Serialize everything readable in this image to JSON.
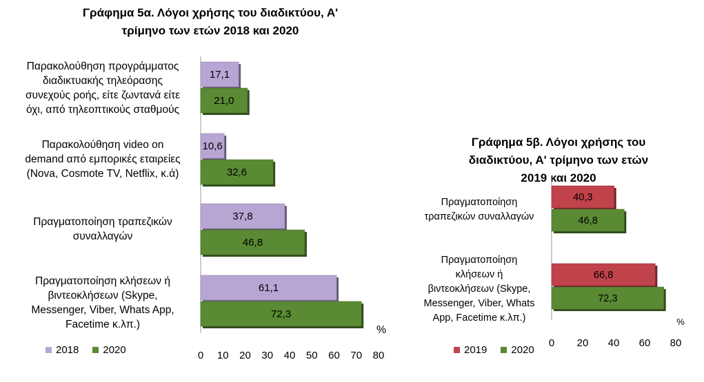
{
  "colors": {
    "2018": "#b7a6d4",
    "2019": "#c0424a",
    "2020": "#5a8a33"
  },
  "chart_data": [
    {
      "type": "bar",
      "orientation": "horizontal",
      "title": "Γράφημα 5α. Λόγοι χρήσης του διαδικτύου, Α' τρίμηνο των ετών 2018 και 2020",
      "unit_label": "%",
      "categories": [
        "Παρακολούθηση προγράμματος διαδικτυακής τηλεόρασης συνεχούς ροής, είτε ζωντανά είτε όχι, από τηλεοπτικούς σταθμούς",
        "Παρακολούθηση video on demand από εμπορικές εταιρείες (Nova, Cosmote TV, Netflix, κ.ά)",
        "Πραγματοποίηση τραπεζικών συναλλαγών",
        "Πραγματοποίηση κλήσεων ή βιντεοκλήσεων (Skype, Messenger, Viber, Whats App, Facetime κ.λπ.)"
      ],
      "category_lines": [
        [
          "Παρακολούθηση προγράμματος",
          "διαδικτυακής τηλεόρασης",
          "συνεχούς ροής, είτε ζωντανά είτε",
          "όχι, από τηλεοπτικούς σταθμούς"
        ],
        [
          "Παρακολούθηση video on",
          "demand από εμπορικές εταιρείες",
          "(Nova, Cosmote TV, Netflix, κ.ά)"
        ],
        [
          "Πραγματοποίηση τραπεζικών",
          "συναλλαγών"
        ],
        [
          "Πραγματοποίηση κλήσεων ή",
          "βιντεοκλήσεων (Skype,",
          "Messenger, Viber, Whats App,",
          "Facetime κ.λπ.)"
        ]
      ],
      "series": [
        {
          "name": "2018",
          "values": [
            17.1,
            10.6,
            37.8,
            61.1
          ],
          "labels": [
            "17,1",
            "10,6",
            "37,8",
            "61,1"
          ]
        },
        {
          "name": "2020",
          "values": [
            21.0,
            32.6,
            46.8,
            72.3
          ],
          "labels": [
            "21,0",
            "32,6",
            "46,8",
            "72,3"
          ]
        }
      ],
      "xlim": [
        0,
        80
      ],
      "xticks": [
        "0",
        "10",
        "20",
        "30",
        "40",
        "50",
        "60",
        "70",
        "80"
      ],
      "legend_position": "bottom-left"
    },
    {
      "type": "bar",
      "orientation": "horizontal",
      "title": "Γράφημα 5β. Λόγοι χρήσης του διαδικτύου, Α' τρίμηνο των ετών 2019 και 2020",
      "unit_label": "%",
      "categories": [
        "Πραγματοποίηση τραπεζικών συναλλαγών",
        "Πραγματοποίηση κλήσεων ή βιντεοκλήσεων (Skype, Messenger, Viber, Whats App, Facetime κ.λπ.)"
      ],
      "category_lines": [
        [
          "Πραγματοποίηση",
          "τραπεζικών συναλλαγών"
        ],
        [
          "Πραγματοποίηση",
          "κλήσεων ή",
          "βιντεοκλήσεων (Skype,",
          "Messenger, Viber, Whats",
          "App, Facetime κ.λπ.)"
        ]
      ],
      "series": [
        {
          "name": "2019",
          "values": [
            40.3,
            66.8
          ],
          "labels": [
            "40,3",
            "66,8"
          ]
        },
        {
          "name": "2020",
          "values": [
            46.8,
            72.3
          ],
          "labels": [
            "46,8",
            "72,3"
          ]
        }
      ],
      "xlim": [
        0,
        80
      ],
      "xticks": [
        "0",
        "20",
        "40",
        "60",
        "80"
      ],
      "legend_position": "bottom-left"
    }
  ],
  "chart1": {
    "title_line1": "Γράφημα 5α. Λόγοι χρήσης του διαδικτύου, Α'",
    "title_line2": "τρίμηνο των ετών 2018 και 2020"
  },
  "chart2": {
    "title_line1": "Γράφημα 5β. Λόγοι χρήσης του",
    "title_line2": "διαδικτύου, Α' τρίμηνο των ετών",
    "title_line3": "2019 και 2020"
  }
}
